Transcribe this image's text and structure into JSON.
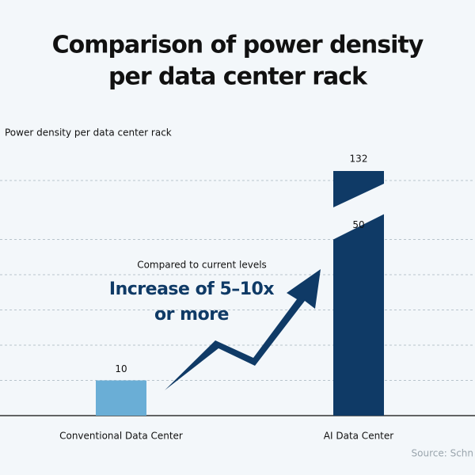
{
  "chart_data": {
    "type": "bar",
    "title": [
      "Comparison of power density",
      "per data center rack"
    ],
    "y_label": "Power density per data center rack",
    "categories": [
      "Conventional Data Center",
      "AI Data Center"
    ],
    "values": [
      10,
      50
    ],
    "extension_values": [
      null,
      132
    ],
    "colors": [
      "#6aaed6",
      "#0f3a66"
    ],
    "gridlines": [
      10,
      20,
      30,
      40,
      50
    ],
    "grid": true,
    "annotation": {
      "subtitle": "Compared to current levels",
      "headline": [
        "Increase of 5–10x",
        "or more"
      ]
    },
    "source": "Source: Schn"
  }
}
